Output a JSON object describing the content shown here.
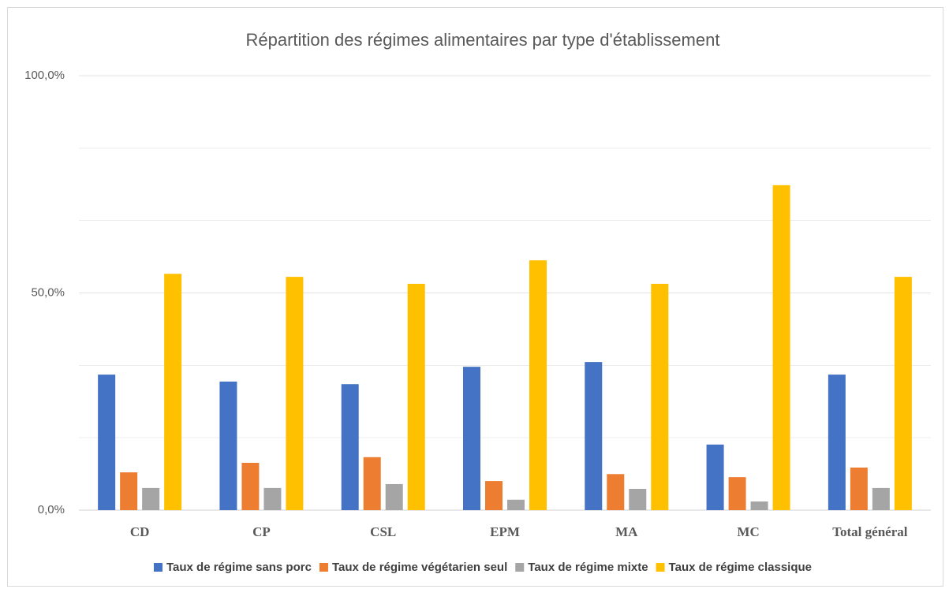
{
  "chart_data": {
    "type": "bar",
    "title": "Répartition des régimes alimentaires par type d'établissement",
    "categories": [
      "CD",
      "CP",
      "CSL",
      "EPM",
      "MA",
      "MC",
      "Total général"
    ],
    "series": [
      {
        "name": "Taux de régime sans porc",
        "color": "#4472c4",
        "values": [
          31.2,
          29.6,
          29.0,
          33.0,
          34.1,
          15.1,
          31.2
        ]
      },
      {
        "name": "Taux de régime végétarien seul",
        "color": "#ed7d31",
        "values": [
          8.7,
          10.9,
          12.2,
          6.7,
          8.3,
          7.6,
          9.8
        ]
      },
      {
        "name": "Taux de régime mixte",
        "color": "#a5a5a5",
        "values": [
          5.1,
          5.1,
          6.0,
          2.4,
          4.9,
          2.0,
          5.1
        ]
      },
      {
        "name": "Taux de régime classique",
        "color": "#ffc000",
        "values": [
          54.4,
          53.7,
          52.1,
          57.5,
          52.1,
          74.8,
          53.7
        ]
      }
    ],
    "ylim": [
      0,
      100
    ],
    "yticks": [
      {
        "value": 0,
        "label": "0,0%"
      },
      {
        "value": 50,
        "label": "50,0%"
      },
      {
        "value": 100,
        "label": "100,0%"
      }
    ],
    "minor_gridlines": [
      16.7,
      33.3,
      66.7,
      83.3
    ],
    "grid": true,
    "legend": "bottom"
  }
}
